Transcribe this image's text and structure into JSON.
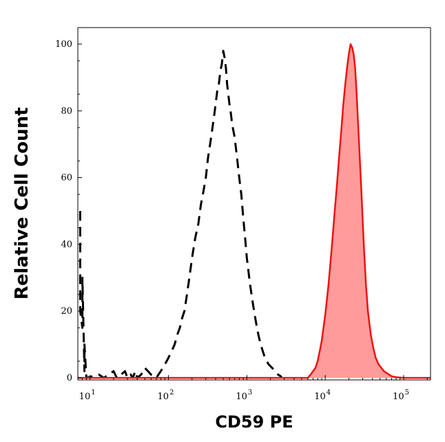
{
  "chart_data": {
    "type": "area",
    "title": "",
    "xlabel": "CD59 PE",
    "ylabel": "Relative Cell Count",
    "xscale": "log",
    "xlim": [
      7,
      220000
    ],
    "ylim": [
      0,
      105
    ],
    "grid": false,
    "legend": "none",
    "x_ticks": [
      {
        "value": 10,
        "base": "10",
        "exp": "1"
      },
      {
        "value": 100,
        "base": "10",
        "exp": "2"
      },
      {
        "value": 1000,
        "base": "10",
        "exp": "3"
      },
      {
        "value": 10000,
        "base": "10",
        "exp": "4"
      },
      {
        "value": 100000,
        "base": "10",
        "exp": "5"
      }
    ],
    "y_ticks": [
      "0",
      "20",
      "40",
      "60",
      "80",
      "100"
    ],
    "series": [
      {
        "style": "dashed",
        "color": "#000000",
        "fill": "none",
        "x": [
          7.5,
          7.5,
          8,
          8,
          8.5,
          8.5,
          9,
          13,
          15,
          20,
          22,
          25,
          28,
          30,
          33,
          35,
          38,
          40,
          45,
          50,
          55,
          60,
          70,
          80,
          90,
          100,
          110,
          120,
          130,
          140,
          150,
          160,
          170,
          180,
          190,
          200,
          220,
          240,
          260,
          280,
          300,
          320,
          340,
          360,
          380,
          400,
          420,
          440,
          460,
          480,
          500,
          520,
          540,
          560,
          580,
          600,
          620,
          650,
          700,
          750,
          800,
          850,
          900,
          950,
          1000,
          1100,
          1200,
          1300,
          1400,
          1500,
          1700,
          1900,
          2100,
          2300,
          2500,
          2700,
          2800
        ],
        "y": [
          50,
          20,
          15,
          30,
          2,
          10,
          0,
          1,
          0,
          2,
          0,
          1,
          2,
          0,
          1,
          0,
          2,
          0,
          1,
          3,
          2,
          1,
          0,
          2,
          4,
          6,
          8,
          10,
          13,
          15,
          18,
          20,
          24,
          28,
          32,
          36,
          42,
          46,
          52,
          56,
          60,
          66,
          70,
          74,
          78,
          82,
          86,
          88,
          92,
          94,
          98,
          96,
          93,
          88,
          85,
          82,
          80,
          76,
          72,
          66,
          60,
          55,
          48,
          42,
          36,
          28,
          22,
          17,
          13,
          10,
          6,
          4,
          3,
          2,
          1,
          0.5,
          0
        ]
      },
      {
        "style": "solid",
        "color": "#ee1111",
        "fill": "#ff9b9b",
        "x": [
          7,
          6000,
          6500,
          7000,
          7500,
          8000,
          8500,
          9000,
          9500,
          10000,
          11000,
          12000,
          13000,
          14000,
          15000,
          16000,
          17000,
          18000,
          19000,
          20000,
          21000,
          22000,
          23000,
          24000,
          25000,
          27000,
          29000,
          31000,
          33000,
          35000,
          38000,
          41000,
          44000,
          48000,
          52000,
          56000,
          60000,
          65000,
          70000,
          80000,
          100000,
          220000
        ],
        "y": [
          0,
          0,
          1,
          2,
          3,
          5,
          8,
          11,
          15,
          19,
          28,
          38,
          48,
          57,
          66,
          74,
          82,
          88,
          93,
          97,
          100,
          99,
          97,
          93,
          86,
          70,
          55,
          40,
          28,
          20,
          13,
          9,
          6,
          4,
          3,
          2,
          1.5,
          1,
          0.5,
          0.2,
          0,
          0
        ]
      }
    ]
  }
}
